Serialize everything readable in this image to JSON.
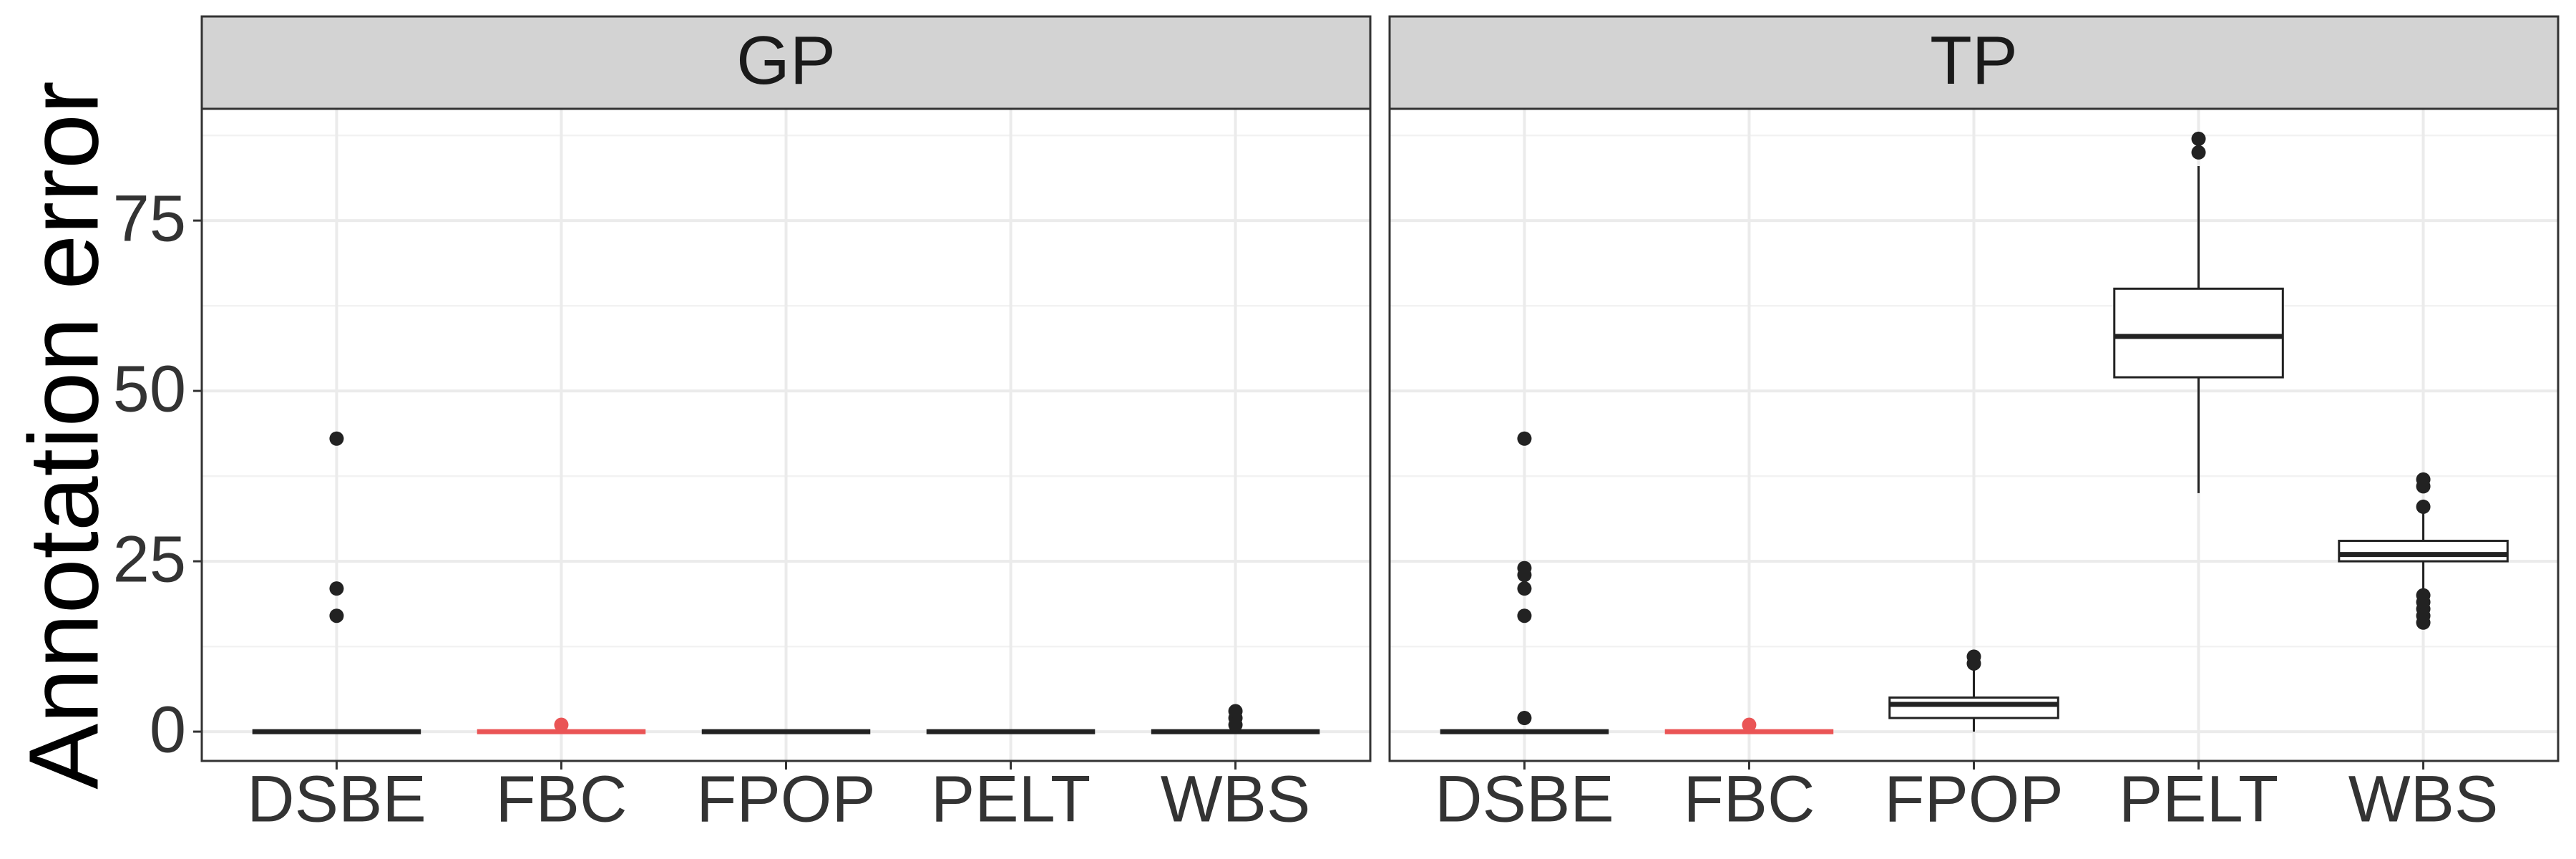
{
  "chart_data": [
    {
      "type": "box",
      "title": "GP",
      "ylabel": "Annotation error",
      "categories": [
        "DSBE",
        "FBC",
        "FPOP",
        "PELT",
        "WBS"
      ],
      "colors": [
        "#222222",
        "#ea5455",
        "#222222",
        "#222222",
        "#222222"
      ],
      "boxes": [
        {
          "low": 0,
          "q1": 0,
          "median": 0,
          "q3": 0,
          "high": 0,
          "outliers": [
            43,
            21,
            17
          ]
        },
        {
          "low": 0,
          "q1": 0,
          "median": 0,
          "q3": 0,
          "high": 0,
          "outliers": [
            1
          ]
        },
        {
          "low": 0,
          "q1": 0,
          "median": 0,
          "q3": 0,
          "high": 0,
          "outliers": []
        },
        {
          "low": 0,
          "q1": 0,
          "median": 0,
          "q3": 0,
          "high": 0,
          "outliers": []
        },
        {
          "low": 0,
          "q1": 0,
          "median": 0,
          "q3": 0,
          "high": 0,
          "outliers": [
            1,
            2,
            3
          ]
        }
      ],
      "ylim": [
        -4.3,
        91.4
      ],
      "yticks": [
        0,
        25,
        50,
        75
      ],
      "minor_yticks": [
        12.5,
        37.5,
        62.5,
        87.5
      ],
      "grid": true
    },
    {
      "type": "box",
      "title": "TP",
      "categories": [
        "DSBE",
        "FBC",
        "FPOP",
        "PELT",
        "WBS"
      ],
      "colors": [
        "#222222",
        "#ea5455",
        "#222222",
        "#222222",
        "#222222"
      ],
      "boxes": [
        {
          "low": 0,
          "q1": 0,
          "median": 0,
          "q3": 0,
          "high": 0,
          "outliers": [
            43,
            24,
            23,
            21,
            17,
            2
          ]
        },
        {
          "low": 0,
          "q1": 0,
          "median": 0,
          "q3": 0,
          "high": 0,
          "outliers": [
            1
          ]
        },
        {
          "low": 0,
          "q1": 2,
          "median": 4,
          "q3": 5,
          "high": 9,
          "outliers": [
            10,
            11
          ]
        },
        {
          "low": 35,
          "q1": 52,
          "median": 58,
          "q3": 65,
          "high": 83,
          "outliers": [
            85,
            87
          ]
        },
        {
          "low": 21,
          "q1": 25,
          "median": 26,
          "q3": 28,
          "high": 32,
          "outliers": [
            16,
            17,
            18,
            19,
            20,
            33,
            36,
            37
          ]
        }
      ],
      "ylim": [
        -4.3,
        91.4
      ],
      "yticks": [
        0,
        25,
        50,
        75
      ],
      "minor_yticks": [
        12.5,
        37.5,
        62.5,
        87.5
      ],
      "grid": true
    }
  ]
}
